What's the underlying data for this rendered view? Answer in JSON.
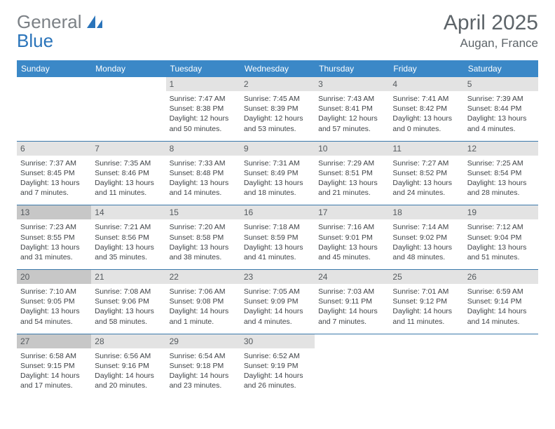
{
  "brand": {
    "part1": "General",
    "part2": "Blue"
  },
  "colors": {
    "header_bg": "#3b88c7",
    "header_text": "#ffffff",
    "daynum_bg": "#e3e3e3",
    "daynum_bg_highlight": "#c7c7c7",
    "divider": "#3a79ab",
    "title_color": "#5d6469",
    "logo_gray": "#7c8186",
    "logo_blue": "#2a74ba",
    "body_text": "#3f4347",
    "page_bg": "#ffffff"
  },
  "title": "April 2025",
  "location": "Augan, France",
  "weekdays": [
    "Sunday",
    "Monday",
    "Tuesday",
    "Wednesday",
    "Thursday",
    "Friday",
    "Saturday"
  ],
  "weeks": [
    [
      {
        "num": "",
        "sunrise": "",
        "sunset": "",
        "daylight": "",
        "highlight": false
      },
      {
        "num": "",
        "sunrise": "",
        "sunset": "",
        "daylight": "",
        "highlight": false
      },
      {
        "num": "1",
        "sunrise": "Sunrise: 7:47 AM",
        "sunset": "Sunset: 8:38 PM",
        "daylight": "Daylight: 12 hours and 50 minutes.",
        "highlight": false
      },
      {
        "num": "2",
        "sunrise": "Sunrise: 7:45 AM",
        "sunset": "Sunset: 8:39 PM",
        "daylight": "Daylight: 12 hours and 53 minutes.",
        "highlight": false
      },
      {
        "num": "3",
        "sunrise": "Sunrise: 7:43 AM",
        "sunset": "Sunset: 8:41 PM",
        "daylight": "Daylight: 12 hours and 57 minutes.",
        "highlight": false
      },
      {
        "num": "4",
        "sunrise": "Sunrise: 7:41 AM",
        "sunset": "Sunset: 8:42 PM",
        "daylight": "Daylight: 13 hours and 0 minutes.",
        "highlight": false
      },
      {
        "num": "5",
        "sunrise": "Sunrise: 7:39 AM",
        "sunset": "Sunset: 8:44 PM",
        "daylight": "Daylight: 13 hours and 4 minutes.",
        "highlight": false
      }
    ],
    [
      {
        "num": "6",
        "sunrise": "Sunrise: 7:37 AM",
        "sunset": "Sunset: 8:45 PM",
        "daylight": "Daylight: 13 hours and 7 minutes.",
        "highlight": false
      },
      {
        "num": "7",
        "sunrise": "Sunrise: 7:35 AM",
        "sunset": "Sunset: 8:46 PM",
        "daylight": "Daylight: 13 hours and 11 minutes.",
        "highlight": false
      },
      {
        "num": "8",
        "sunrise": "Sunrise: 7:33 AM",
        "sunset": "Sunset: 8:48 PM",
        "daylight": "Daylight: 13 hours and 14 minutes.",
        "highlight": false
      },
      {
        "num": "9",
        "sunrise": "Sunrise: 7:31 AM",
        "sunset": "Sunset: 8:49 PM",
        "daylight": "Daylight: 13 hours and 18 minutes.",
        "highlight": false
      },
      {
        "num": "10",
        "sunrise": "Sunrise: 7:29 AM",
        "sunset": "Sunset: 8:51 PM",
        "daylight": "Daylight: 13 hours and 21 minutes.",
        "highlight": false
      },
      {
        "num": "11",
        "sunrise": "Sunrise: 7:27 AM",
        "sunset": "Sunset: 8:52 PM",
        "daylight": "Daylight: 13 hours and 24 minutes.",
        "highlight": false
      },
      {
        "num": "12",
        "sunrise": "Sunrise: 7:25 AM",
        "sunset": "Sunset: 8:54 PM",
        "daylight": "Daylight: 13 hours and 28 minutes.",
        "highlight": false
      }
    ],
    [
      {
        "num": "13",
        "sunrise": "Sunrise: 7:23 AM",
        "sunset": "Sunset: 8:55 PM",
        "daylight": "Daylight: 13 hours and 31 minutes.",
        "highlight": true
      },
      {
        "num": "14",
        "sunrise": "Sunrise: 7:21 AM",
        "sunset": "Sunset: 8:56 PM",
        "daylight": "Daylight: 13 hours and 35 minutes.",
        "highlight": false
      },
      {
        "num": "15",
        "sunrise": "Sunrise: 7:20 AM",
        "sunset": "Sunset: 8:58 PM",
        "daylight": "Daylight: 13 hours and 38 minutes.",
        "highlight": false
      },
      {
        "num": "16",
        "sunrise": "Sunrise: 7:18 AM",
        "sunset": "Sunset: 8:59 PM",
        "daylight": "Daylight: 13 hours and 41 minutes.",
        "highlight": false
      },
      {
        "num": "17",
        "sunrise": "Sunrise: 7:16 AM",
        "sunset": "Sunset: 9:01 PM",
        "daylight": "Daylight: 13 hours and 45 minutes.",
        "highlight": false
      },
      {
        "num": "18",
        "sunrise": "Sunrise: 7:14 AM",
        "sunset": "Sunset: 9:02 PM",
        "daylight": "Daylight: 13 hours and 48 minutes.",
        "highlight": false
      },
      {
        "num": "19",
        "sunrise": "Sunrise: 7:12 AM",
        "sunset": "Sunset: 9:04 PM",
        "daylight": "Daylight: 13 hours and 51 minutes.",
        "highlight": false
      }
    ],
    [
      {
        "num": "20",
        "sunrise": "Sunrise: 7:10 AM",
        "sunset": "Sunset: 9:05 PM",
        "daylight": "Daylight: 13 hours and 54 minutes.",
        "highlight": true
      },
      {
        "num": "21",
        "sunrise": "Sunrise: 7:08 AM",
        "sunset": "Sunset: 9:06 PM",
        "daylight": "Daylight: 13 hours and 58 minutes.",
        "highlight": false
      },
      {
        "num": "22",
        "sunrise": "Sunrise: 7:06 AM",
        "sunset": "Sunset: 9:08 PM",
        "daylight": "Daylight: 14 hours and 1 minute.",
        "highlight": false
      },
      {
        "num": "23",
        "sunrise": "Sunrise: 7:05 AM",
        "sunset": "Sunset: 9:09 PM",
        "daylight": "Daylight: 14 hours and 4 minutes.",
        "highlight": false
      },
      {
        "num": "24",
        "sunrise": "Sunrise: 7:03 AM",
        "sunset": "Sunset: 9:11 PM",
        "daylight": "Daylight: 14 hours and 7 minutes.",
        "highlight": false
      },
      {
        "num": "25",
        "sunrise": "Sunrise: 7:01 AM",
        "sunset": "Sunset: 9:12 PM",
        "daylight": "Daylight: 14 hours and 11 minutes.",
        "highlight": false
      },
      {
        "num": "26",
        "sunrise": "Sunrise: 6:59 AM",
        "sunset": "Sunset: 9:14 PM",
        "daylight": "Daylight: 14 hours and 14 minutes.",
        "highlight": false
      }
    ],
    [
      {
        "num": "27",
        "sunrise": "Sunrise: 6:58 AM",
        "sunset": "Sunset: 9:15 PM",
        "daylight": "Daylight: 14 hours and 17 minutes.",
        "highlight": true
      },
      {
        "num": "28",
        "sunrise": "Sunrise: 6:56 AM",
        "sunset": "Sunset: 9:16 PM",
        "daylight": "Daylight: 14 hours and 20 minutes.",
        "highlight": false
      },
      {
        "num": "29",
        "sunrise": "Sunrise: 6:54 AM",
        "sunset": "Sunset: 9:18 PM",
        "daylight": "Daylight: 14 hours and 23 minutes.",
        "highlight": false
      },
      {
        "num": "30",
        "sunrise": "Sunrise: 6:52 AM",
        "sunset": "Sunset: 9:19 PM",
        "daylight": "Daylight: 14 hours and 26 minutes.",
        "highlight": false
      },
      {
        "num": "",
        "sunrise": "",
        "sunset": "",
        "daylight": "",
        "highlight": false
      },
      {
        "num": "",
        "sunrise": "",
        "sunset": "",
        "daylight": "",
        "highlight": false
      },
      {
        "num": "",
        "sunrise": "",
        "sunset": "",
        "daylight": "",
        "highlight": false
      }
    ]
  ]
}
